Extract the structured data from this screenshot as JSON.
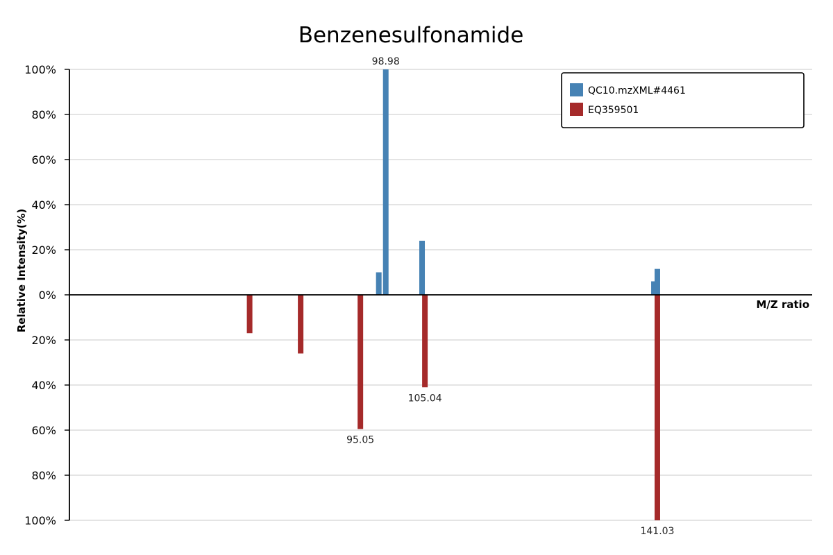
{
  "chart_data": {
    "type": "bar",
    "title": "Benzenesulfonamide",
    "xlabel": "M/Z ratio",
    "ylabel": "Relative Intensity(%)",
    "y_axis": {
      "upper_range": [
        0,
        100
      ],
      "lower_range_mirrored": [
        0,
        100
      ],
      "ticks_upper": [
        "100%",
        "80%",
        "60%",
        "40%",
        "20%",
        "0%"
      ],
      "ticks_lower": [
        "20%",
        "40%",
        "60%",
        "80%",
        "100%"
      ],
      "tick_values": [
        100,
        80,
        60,
        40,
        20,
        0,
        -20,
        -40,
        -60,
        -80,
        -100
      ]
    },
    "xlim": [
      50,
      165
    ],
    "grid": true,
    "legend_position": "top-right",
    "series": [
      {
        "name": "QC10.mzXML#4461",
        "color": "#4682b4",
        "direction": "up",
        "points": [
          {
            "mz": 97.9,
            "intensity": 10
          },
          {
            "mz": 98.98,
            "intensity": 100,
            "label": "98.98"
          },
          {
            "mz": 104.6,
            "intensity": 24
          },
          {
            "mz": 140.5,
            "intensity": 6
          },
          {
            "mz": 141.03,
            "intensity": 11.5
          }
        ]
      },
      {
        "name": "EQ359501",
        "color": "#a52a2a",
        "direction": "down",
        "points": [
          {
            "mz": 77.9,
            "intensity": 17
          },
          {
            "mz": 85.8,
            "intensity": 26
          },
          {
            "mz": 95.05,
            "intensity": 59.5,
            "label": "95.05"
          },
          {
            "mz": 105.04,
            "intensity": 41,
            "label": "105.04"
          },
          {
            "mz": 141.03,
            "intensity": 100,
            "label": "141.03"
          }
        ]
      }
    ]
  }
}
